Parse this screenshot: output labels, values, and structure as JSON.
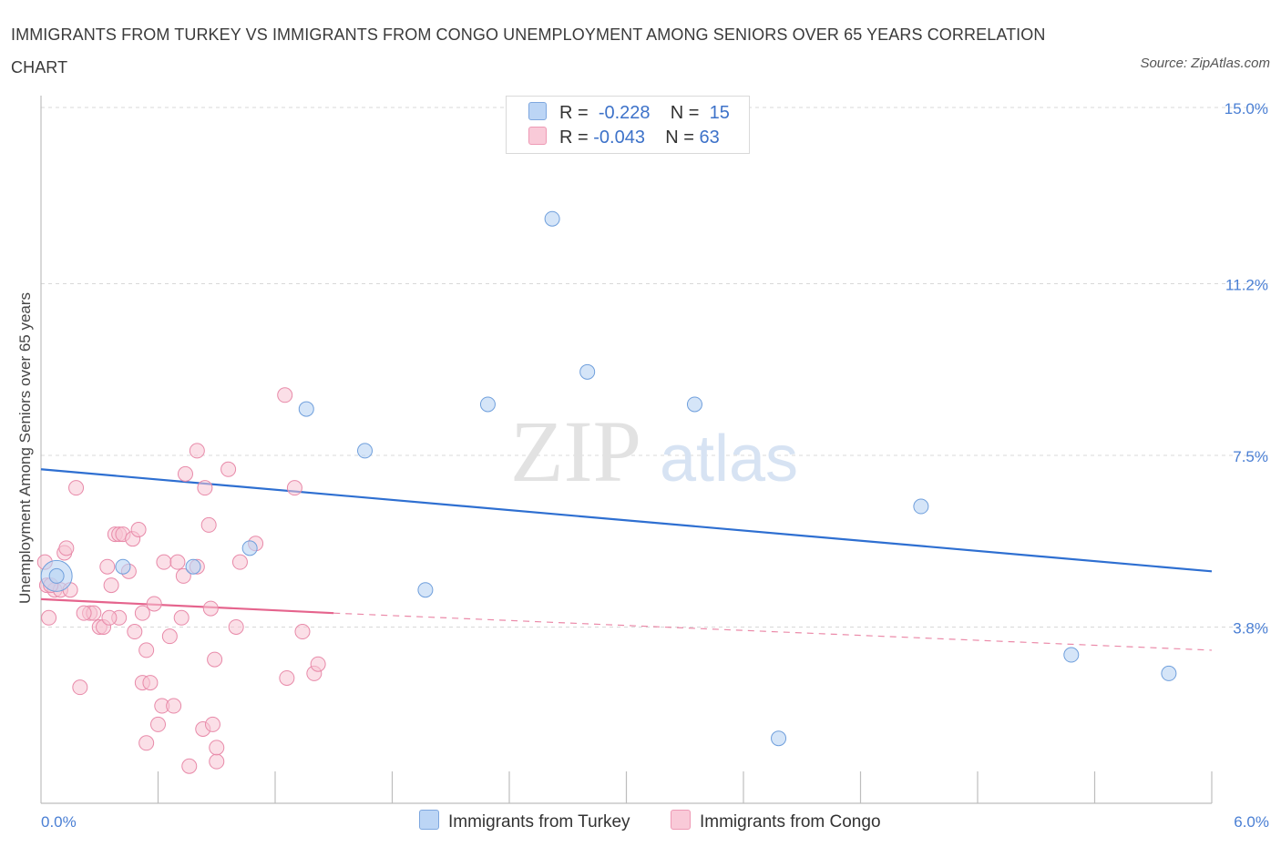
{
  "title": "IMMIGRANTS FROM TURKEY VS IMMIGRANTS FROM CONGO UNEMPLOYMENT AMONG SENIORS OVER 65 YEARS CORRELATION CHART",
  "source": "Source: ZipAtlas.com",
  "watermark": {
    "zip": "ZIP",
    "atlas": "atlas"
  },
  "legend_top": {
    "rows": [
      {
        "r_label": "R =",
        "r_value": "-0.228",
        "n_label": "N =",
        "n_value": "15",
        "color": "#a9c8f2"
      },
      {
        "r_label": "R =",
        "r_value": "-0.043",
        "n_label": "N =",
        "n_value": "63",
        "color": "#f5b6cb"
      }
    ]
  },
  "colors": {
    "turkey_fill": "#b9d3f4",
    "turkey_stroke": "#6f9fdc",
    "turkey_line": "#2e6fd1",
    "congo_fill": "#f8c4d4",
    "congo_stroke": "#e88aa9",
    "congo_line": "#e5648d",
    "grid": "#d8d8d8",
    "tick_text": "#4a7fd4"
  },
  "chart_data": {
    "type": "scatter",
    "title": "IMMIGRANTS FROM TURKEY VS IMMIGRANTS FROM CONGO UNEMPLOYMENT AMONG SENIORS OVER 65 YEARS CORRELATION CHART",
    "xlabel": "",
    "ylabel": "Unemployment Among Seniors over 65 years",
    "xlim": [
      0.0,
      6.0
    ],
    "ylim": [
      0.0,
      15.0
    ],
    "x_ticks": [
      "0.0%",
      "6.0%"
    ],
    "y_ticks": [
      {
        "value": 3.8,
        "label": "3.8%"
      },
      {
        "value": 7.5,
        "label": "7.5%"
      },
      {
        "value": 11.2,
        "label": "11.2%"
      },
      {
        "value": 15.0,
        "label": "15.0%"
      }
    ],
    "legend_position": "bottom-center",
    "series": [
      {
        "name": "Immigrants from Turkey",
        "trend": {
          "x1": 0.0,
          "y1": 7.2,
          "x2": 6.0,
          "y2": 5.0
        },
        "points": [
          [
            0.08,
            4.9
          ],
          [
            0.42,
            5.1
          ],
          [
            0.78,
            5.1
          ],
          [
            1.07,
            5.5
          ],
          [
            1.36,
            8.5
          ],
          [
            1.66,
            7.6
          ],
          [
            1.97,
            4.6
          ],
          [
            2.29,
            8.6
          ],
          [
            2.62,
            12.6
          ],
          [
            2.8,
            9.3
          ],
          [
            3.35,
            8.6
          ],
          [
            3.78,
            1.4
          ],
          [
            4.51,
            6.4
          ],
          [
            5.28,
            3.2
          ],
          [
            5.78,
            2.8
          ]
        ],
        "big_point": {
          "x": 0.08,
          "y": 4.9
        }
      },
      {
        "name": "Immigrants from Congo",
        "trend": {
          "x1": 0.0,
          "y1": 4.4,
          "x2": 1.5,
          "y2": 4.1,
          "dash_to_x": 6.0,
          "dash_to_y": 3.3
        },
        "points": [
          [
            0.02,
            5.2
          ],
          [
            0.03,
            4.7
          ],
          [
            0.04,
            4.0
          ],
          [
            0.07,
            4.6
          ],
          [
            0.1,
            4.6
          ],
          [
            0.12,
            5.4
          ],
          [
            0.13,
            5.5
          ],
          [
            0.18,
            6.8
          ],
          [
            0.2,
            2.5
          ],
          [
            0.25,
            4.1
          ],
          [
            0.27,
            4.1
          ],
          [
            0.3,
            3.8
          ],
          [
            0.32,
            3.8
          ],
          [
            0.34,
            5.1
          ],
          [
            0.36,
            4.7
          ],
          [
            0.38,
            5.8
          ],
          [
            0.4,
            5.8
          ],
          [
            0.4,
            4.0
          ],
          [
            0.42,
            5.8
          ],
          [
            0.45,
            5.0
          ],
          [
            0.47,
            5.7
          ],
          [
            0.5,
            5.9
          ],
          [
            0.52,
            4.1
          ],
          [
            0.52,
            2.6
          ],
          [
            0.54,
            3.3
          ],
          [
            0.54,
            1.3
          ],
          [
            0.56,
            2.6
          ],
          [
            0.58,
            4.3
          ],
          [
            0.6,
            1.7
          ],
          [
            0.62,
            2.1
          ],
          [
            0.63,
            5.2
          ],
          [
            0.66,
            3.6
          ],
          [
            0.68,
            2.1
          ],
          [
            0.7,
            5.2
          ],
          [
            0.72,
            4.0
          ],
          [
            0.73,
            4.9
          ],
          [
            0.74,
            7.1
          ],
          [
            0.76,
            0.8
          ],
          [
            0.8,
            7.6
          ],
          [
            0.8,
            5.1
          ],
          [
            0.83,
            1.6
          ],
          [
            0.84,
            6.8
          ],
          [
            0.86,
            6.0
          ],
          [
            0.87,
            4.2
          ],
          [
            0.88,
            1.7
          ],
          [
            0.89,
            3.1
          ],
          [
            0.9,
            0.9
          ],
          [
            0.9,
            1.2
          ],
          [
            0.96,
            7.2
          ],
          [
            1.0,
            3.8
          ],
          [
            1.02,
            5.2
          ],
          [
            1.1,
            5.6
          ],
          [
            1.25,
            8.8
          ],
          [
            1.26,
            2.7
          ],
          [
            1.3,
            6.8
          ],
          [
            1.34,
            3.7
          ],
          [
            1.4,
            2.8
          ],
          [
            1.42,
            3.0
          ],
          [
            0.05,
            4.7
          ],
          [
            0.15,
            4.6
          ],
          [
            0.22,
            4.1
          ],
          [
            0.35,
            4.0
          ],
          [
            0.48,
            3.7
          ]
        ]
      }
    ]
  }
}
